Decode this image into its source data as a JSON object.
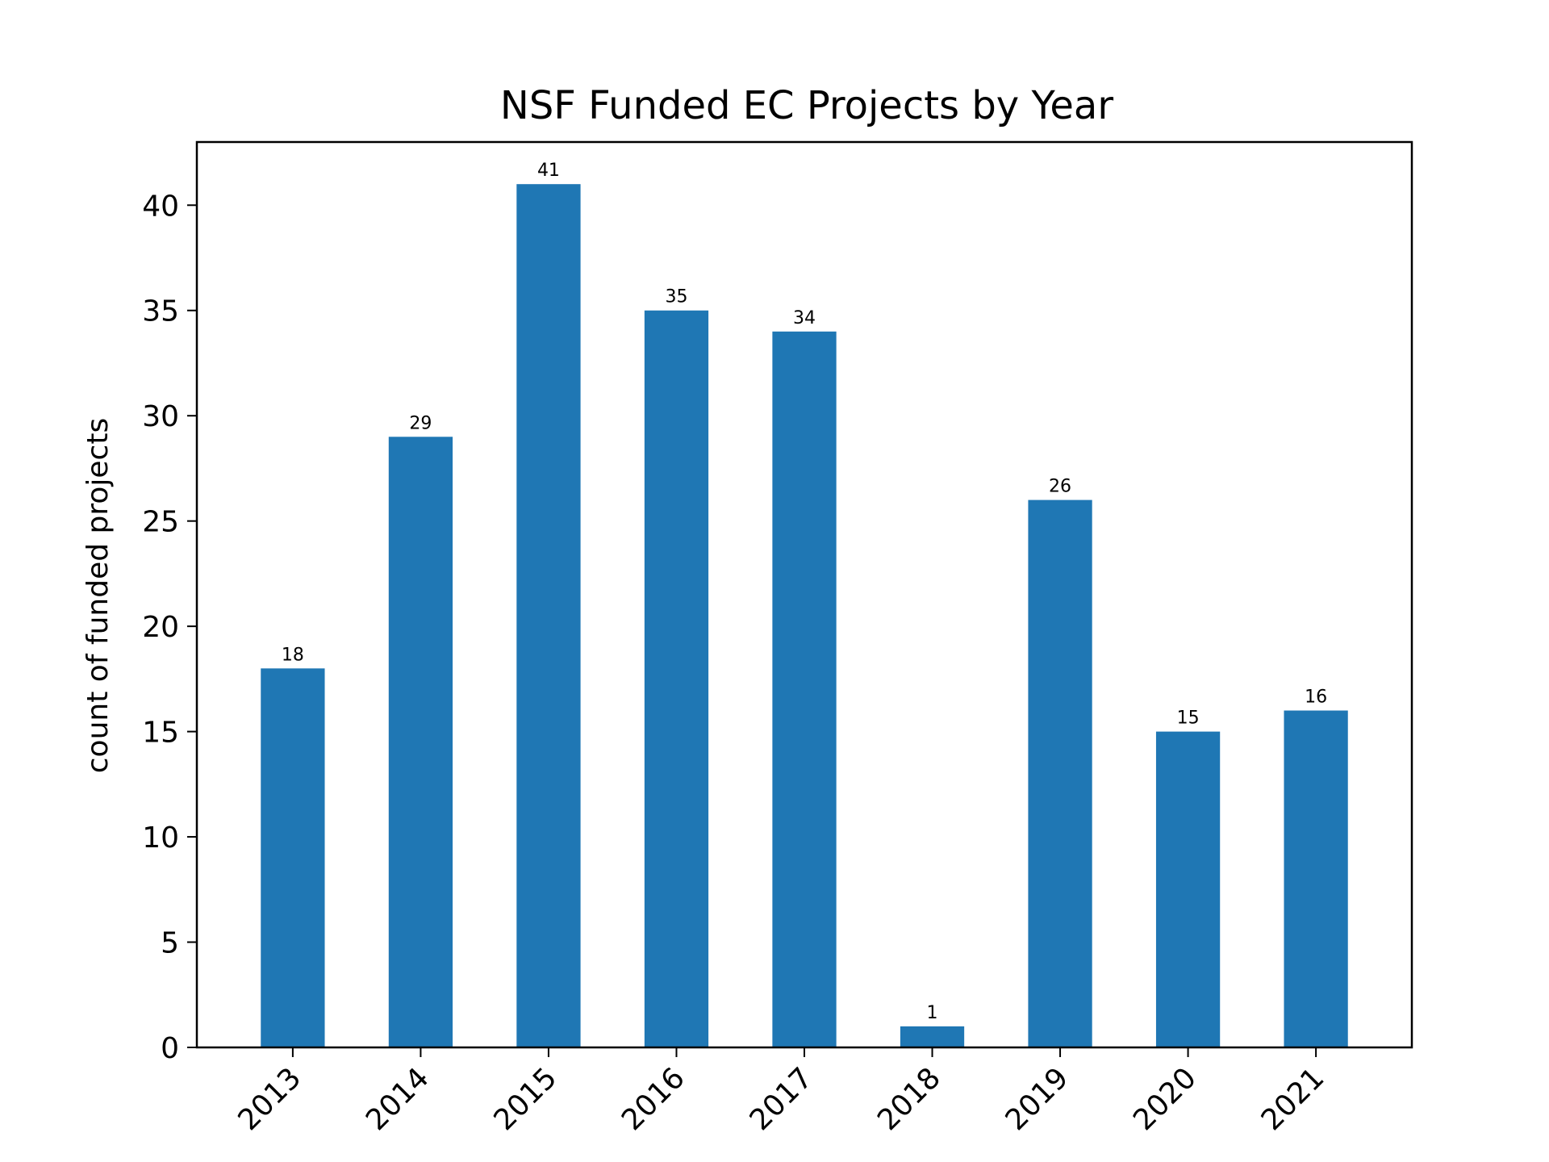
{
  "chart_data": {
    "type": "bar",
    "title": "NSF Funded EC Projects by Year",
    "xlabel": "",
    "ylabel": "count of funded projects",
    "categories": [
      "2013",
      "2014",
      "2015",
      "2016",
      "2017",
      "2018",
      "2019",
      "2020",
      "2021"
    ],
    "values": [
      18,
      29,
      41,
      35,
      34,
      1,
      26,
      15,
      16
    ],
    "ylim": [
      0,
      43
    ],
    "yticks": [
      0,
      5,
      10,
      15,
      20,
      25,
      30,
      35,
      40
    ],
    "grid": false,
    "legend": "none",
    "bar_color": "#1f77b4",
    "x_tick_rotation": "45°"
  }
}
